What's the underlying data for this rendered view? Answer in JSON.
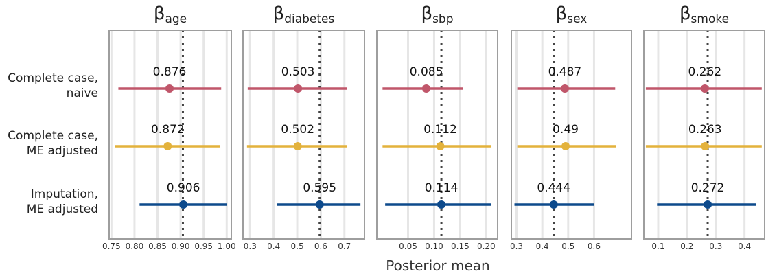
{
  "chart_data": {
    "type": "forest",
    "xlabel": "Posterior mean",
    "row_labels": [
      [
        "Complete case,",
        "naive"
      ],
      [
        "Complete case,",
        "ME adjusted"
      ],
      [
        "Imputation,",
        "ME adjusted"
      ]
    ],
    "series_colors": [
      "#c0566a",
      "#e3b23c",
      "#0d4a8c"
    ],
    "panels": [
      {
        "title_symbol": "β",
        "title_sub": "age",
        "xlim": [
          0.745,
          1.01
        ],
        "ticks": [
          0.75,
          0.8,
          0.85,
          0.9,
          0.95,
          1.0
        ],
        "tick_labels": [
          "0.75",
          "0.80",
          "0.85",
          "0.90",
          "0.95",
          "1.00"
        ],
        "reference": 0.905,
        "rows": [
          {
            "mean": 0.876,
            "label": "0.876",
            "lo": 0.765,
            "hi": 0.988
          },
          {
            "mean": 0.872,
            "label": "0.872",
            "lo": 0.757,
            "hi": 0.985
          },
          {
            "mean": 0.906,
            "label": "0.906",
            "lo": 0.811,
            "hi": 1.0
          }
        ]
      },
      {
        "title_symbol": "β",
        "title_sub": "diabetes",
        "xlim": [
          0.27,
          0.785
        ],
        "ticks": [
          0.3,
          0.4,
          0.5,
          0.6,
          0.7
        ],
        "tick_labels": [
          "0.3",
          "0.4",
          "0.5",
          "0.6",
          "0.7"
        ],
        "reference": 0.595,
        "rows": [
          {
            "mean": 0.503,
            "label": "0.503",
            "lo": 0.29,
            "hi": 0.712
          },
          {
            "mean": 0.502,
            "label": "0.502",
            "lo": 0.287,
            "hi": 0.712
          },
          {
            "mean": 0.595,
            "label": "0.595",
            "lo": 0.413,
            "hi": 0.768
          }
        ]
      },
      {
        "title_symbol": "β",
        "title_sub": "sbp",
        "xlim": [
          -0.01,
          0.222
        ],
        "ticks": [
          0.05,
          0.1,
          0.15,
          0.2
        ],
        "tick_labels": [
          "0.05",
          "0.10",
          "0.15",
          "0.20"
        ],
        "reference": 0.114,
        "rows": [
          {
            "mean": 0.085,
            "label": "0.085",
            "lo": 0.001,
            "hi": 0.155
          },
          {
            "mean": 0.112,
            "label": "0.112",
            "lo": 0.001,
            "hi": 0.21
          },
          {
            "mean": 0.114,
            "label": "0.114",
            "lo": 0.006,
            "hi": 0.21
          }
        ]
      },
      {
        "title_symbol": "β",
        "title_sub": "sex",
        "xlim": [
          0.28,
          0.745
        ],
        "ticks": [
          0.3,
          0.4,
          0.5,
          0.6
        ],
        "tick_labels": [
          "0.3",
          "0.4",
          "0.5",
          "0.6"
        ],
        "reference": 0.444,
        "rows": [
          {
            "mean": 0.487,
            "label": "0.487",
            "lo": 0.303,
            "hi": 0.682
          },
          {
            "mean": 0.49,
            "label": "0.49",
            "lo": 0.303,
            "hi": 0.685
          },
          {
            "mean": 0.444,
            "label": "0.444",
            "lo": 0.292,
            "hi": 0.601
          }
        ]
      },
      {
        "title_symbol": "β",
        "title_sub": "smoke",
        "xlim": [
          0.05,
          0.47
        ],
        "ticks": [
          0.1,
          0.2,
          0.3,
          0.4
        ],
        "tick_labels": [
          "0.1",
          "0.2",
          "0.3",
          "0.4"
        ],
        "reference": 0.272,
        "rows": [
          {
            "mean": 0.262,
            "label": "0.262",
            "lo": 0.057,
            "hi": 0.46
          },
          {
            "mean": 0.263,
            "label": "0.263",
            "lo": 0.057,
            "hi": 0.46
          },
          {
            "mean": 0.272,
            "label": "0.272",
            "lo": 0.096,
            "hi": 0.44
          }
        ]
      }
    ]
  }
}
